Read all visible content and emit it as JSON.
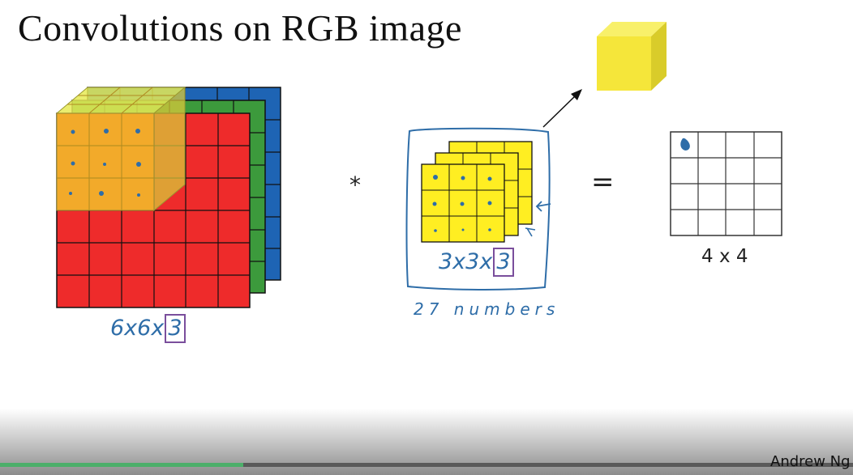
{
  "slide": {
    "title": "Convolutions on RGB image",
    "input_volume": {
      "label_prefix": "6x6x",
      "label_boxed": "3",
      "channel_colors": {
        "red": "#ee2b2b",
        "green": "#3c9a3c",
        "blue": "#1e64b4"
      },
      "filter_overlay_color": "#f2b52a"
    },
    "operator_convolve": "*",
    "filter": {
      "label_prefix": "3x3x",
      "label_boxed": "3",
      "note": "27 numbers",
      "color": "#ffee22"
    },
    "operator_equals": "=",
    "output": {
      "label": "4 x 4",
      "rows": 4,
      "cols": 4
    },
    "cube_color": "#f5e63a",
    "presenter": "Andrew Ng",
    "video_progress": 0.285
  }
}
